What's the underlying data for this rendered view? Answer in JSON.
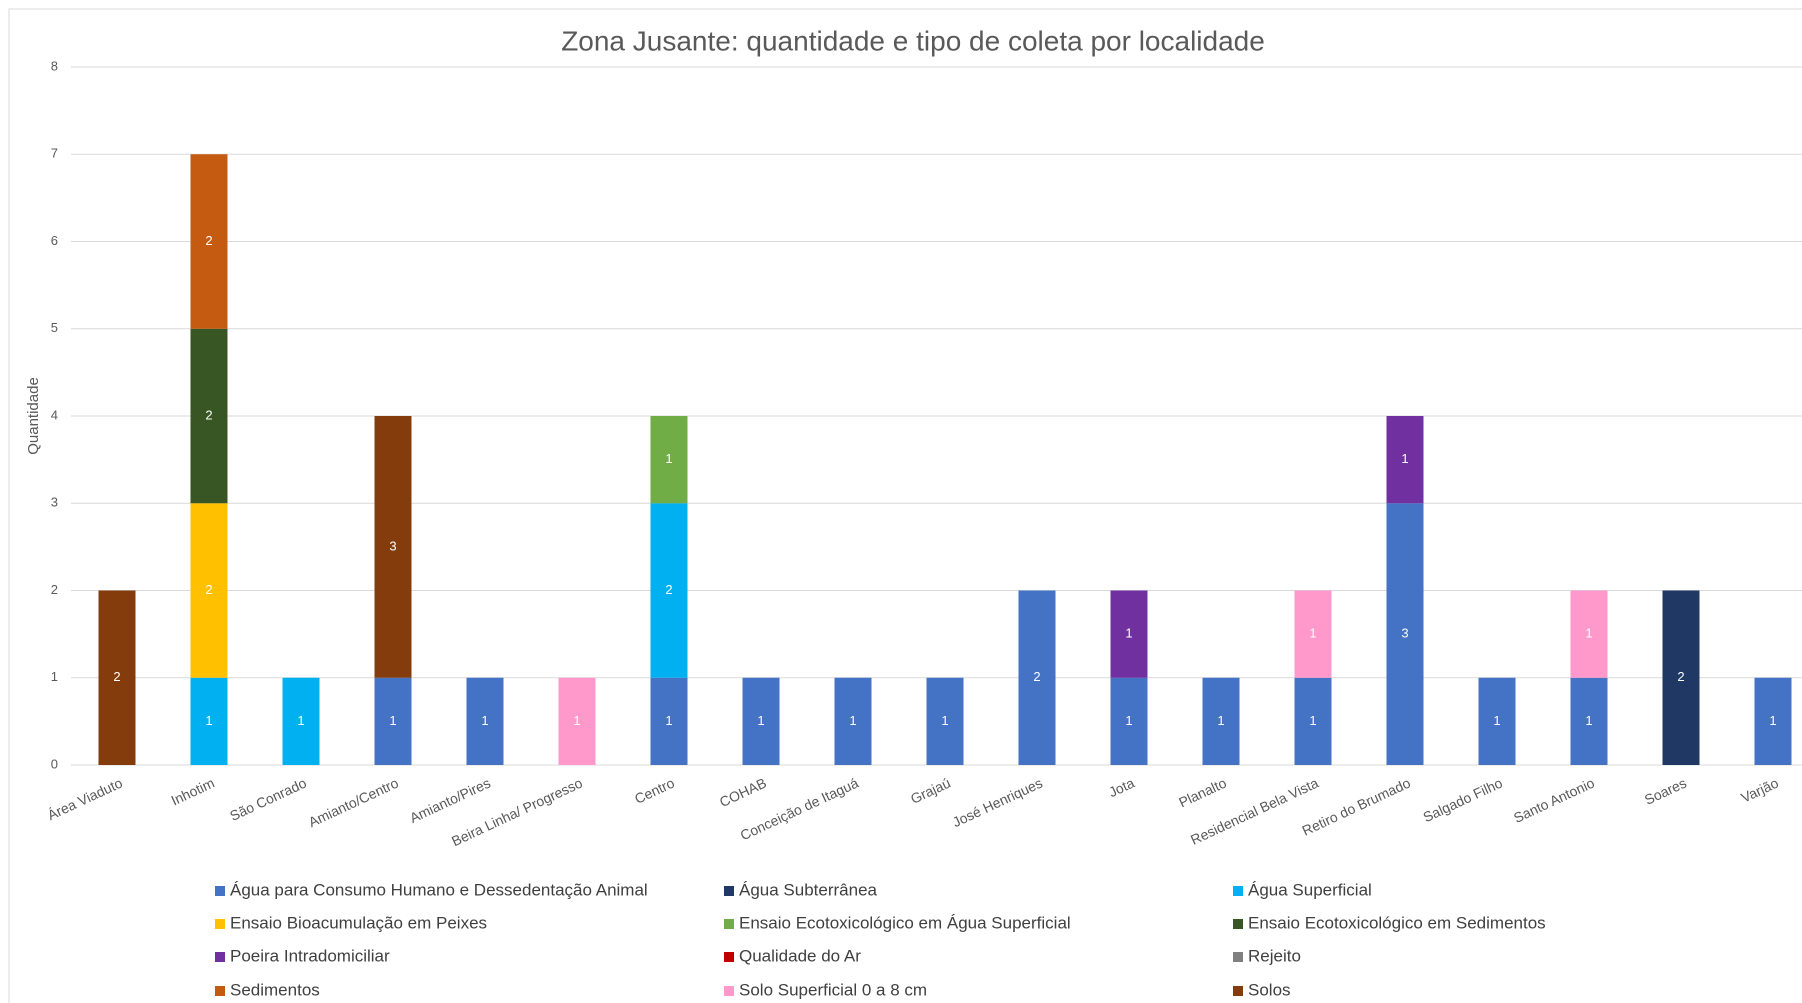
{
  "chart_data": {
    "type": "stacked_bar",
    "title": "Zona Jusante: quantidade e tipo de coleta por localidade",
    "y_label": "Quantidade",
    "categories": [
      "Área Viaduto",
      "Inhotim",
      "São Conrado",
      "Amianto/Centro",
      "Amianto/Pires",
      "Beira Linha/ Progresso",
      "Centro",
      "COHAB",
      "Conceição de Itaguá",
      "Grajaú",
      "José Henriques",
      "Jota",
      "Planalto",
      "Residencial Bela Vista",
      "Retiro do Brumado",
      "Salgado Filho",
      "Santo Antonio",
      "Soares",
      "Varjão"
    ],
    "series": [
      {
        "name": "Água para Consumo Humano e Dessedentação Animal",
        "color": "#4472c4",
        "values": [
          null,
          null,
          null,
          1,
          1,
          null,
          1,
          1,
          1,
          1,
          2,
          1,
          1,
          1,
          3,
          1,
          1,
          null,
          1
        ]
      },
      {
        "name": "Água Subterrânea",
        "color": "#1f3864",
        "values": [
          null,
          null,
          null,
          null,
          null,
          null,
          null,
          null,
          null,
          null,
          null,
          null,
          null,
          null,
          null,
          null,
          null,
          2,
          null
        ]
      },
      {
        "name": "Água Superficial",
        "color": "#00b0f0",
        "values": [
          null,
          1,
          1,
          null,
          null,
          null,
          2,
          null,
          null,
          null,
          null,
          null,
          null,
          null,
          null,
          null,
          null,
          null,
          null
        ]
      },
      {
        "name": "Ensaio Bioacumulação em Peixes",
        "color": "#ffc000",
        "values": [
          null,
          2,
          null,
          null,
          null,
          null,
          null,
          null,
          null,
          null,
          null,
          null,
          null,
          null,
          null,
          null,
          null,
          null,
          null
        ]
      },
      {
        "name": "Ensaio Ecotoxicológico em Água Superficial",
        "color": "#70ad47",
        "values": [
          null,
          null,
          null,
          null,
          null,
          null,
          1,
          null,
          null,
          null,
          null,
          null,
          null,
          null,
          null,
          null,
          null,
          null,
          null
        ]
      },
      {
        "name": "Ensaio Ecotoxicológico em Sedimentos",
        "color": "#375623",
        "values": [
          null,
          2,
          null,
          null,
          null,
          null,
          null,
          null,
          null,
          null,
          null,
          null,
          null,
          null,
          null,
          null,
          null,
          null,
          null
        ]
      },
      {
        "name": "Poeira Intradomiciliar",
        "color": "#7030a0",
        "values": [
          null,
          null,
          null,
          null,
          null,
          null,
          null,
          null,
          null,
          null,
          null,
          1,
          null,
          null,
          1,
          null,
          null,
          null,
          null
        ]
      },
      {
        "name": "Qualidade do Ar",
        "color": "#c00000",
        "values": [
          null,
          null,
          null,
          null,
          null,
          null,
          null,
          null,
          null,
          null,
          null,
          null,
          null,
          null,
          null,
          null,
          null,
          null,
          null
        ]
      },
      {
        "name": "Rejeito",
        "color": "#808080",
        "values": [
          null,
          null,
          null,
          null,
          null,
          null,
          null,
          null,
          null,
          null,
          null,
          null,
          null,
          null,
          null,
          null,
          null,
          null,
          null
        ]
      },
      {
        "name": "Sedimentos",
        "color": "#c55a11",
        "values": [
          null,
          2,
          null,
          null,
          null,
          null,
          null,
          null,
          null,
          null,
          null,
          null,
          null,
          null,
          null,
          null,
          null,
          null,
          null
        ]
      },
      {
        "name": "Solo Superficial 0 a 8 cm",
        "color": "#ff99cc",
        "values": [
          null,
          null,
          null,
          null,
          null,
          1,
          null,
          null,
          null,
          null,
          null,
          null,
          null,
          1,
          null,
          null,
          1,
          null,
          null
        ]
      },
      {
        "name": "Solos",
        "color": "#843c0c",
        "values": [
          2,
          null,
          null,
          3,
          null,
          null,
          null,
          null,
          null,
          null,
          null,
          null,
          null,
          null,
          null,
          null,
          null,
          null,
          null
        ]
      }
    ],
    "ylim": [
      0,
      8
    ],
    "yticks": [
      0,
      1,
      2,
      3,
      4,
      5,
      6,
      7,
      8
    ],
    "grid": true,
    "legend": "bottom"
  }
}
